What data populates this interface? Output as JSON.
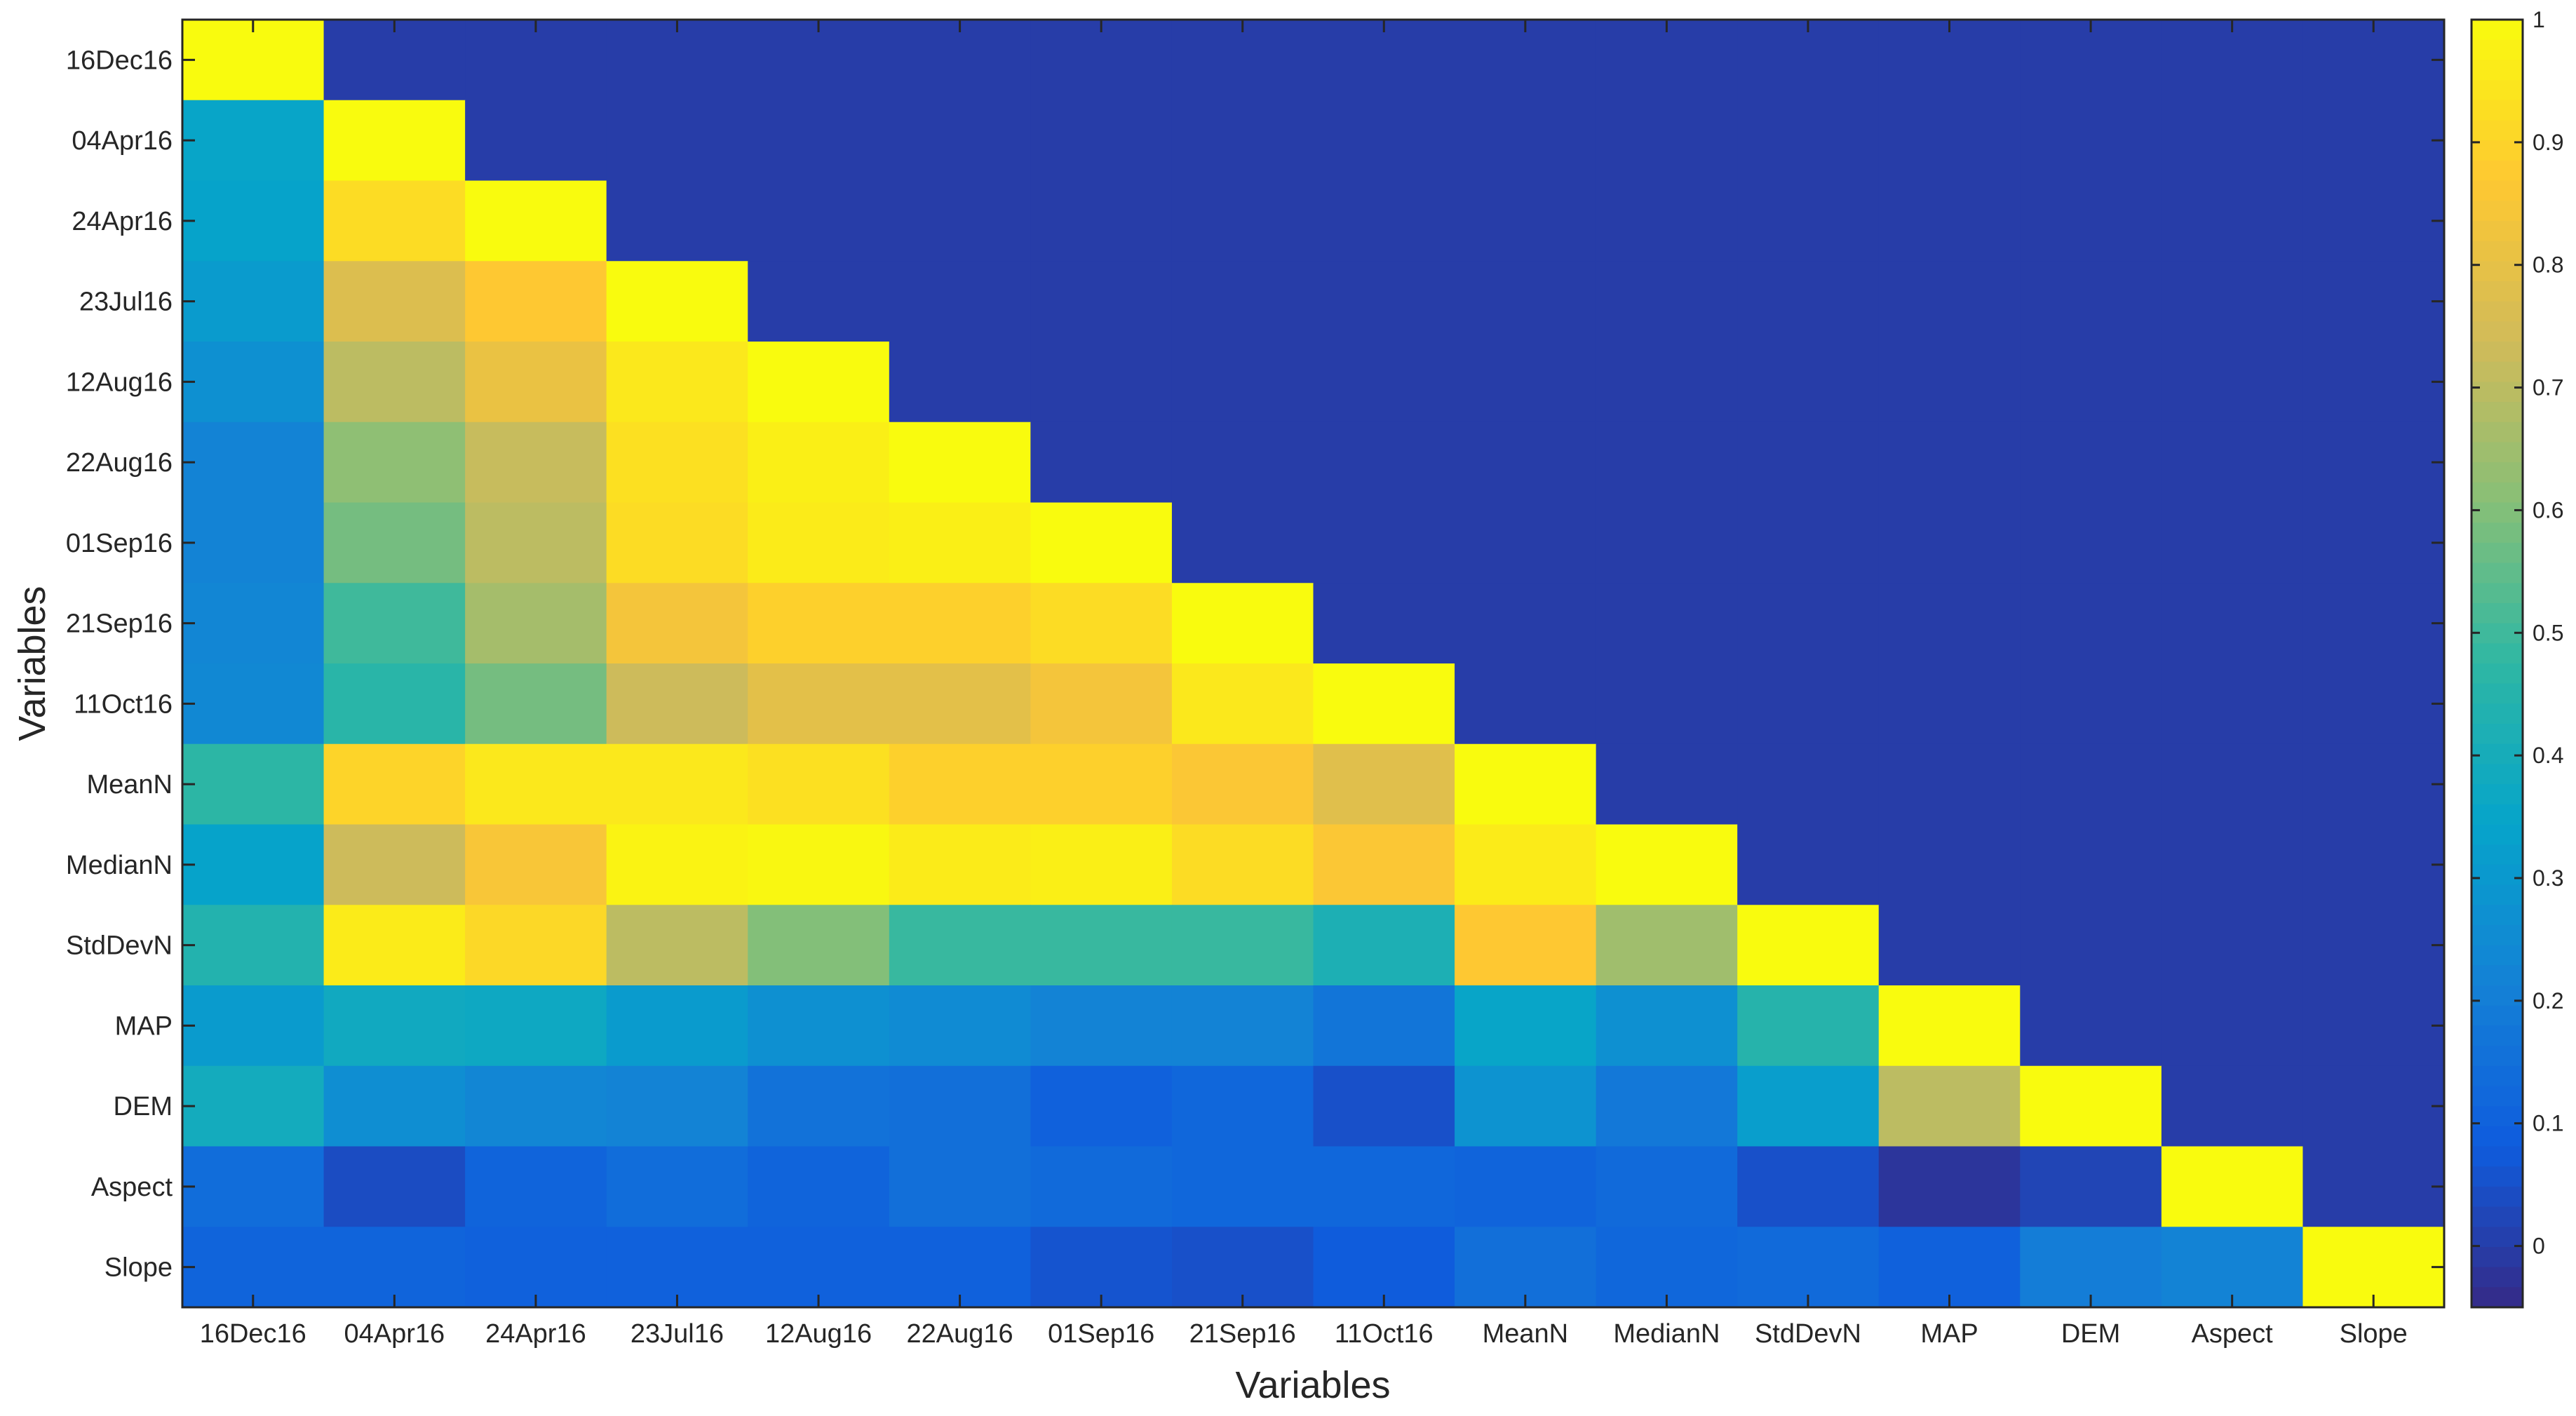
{
  "chart_data": {
    "type": "heatmap",
    "title": "",
    "xlabel": "Variables",
    "ylabel": "Variables",
    "categories": [
      "16Dec16",
      "04Apr16",
      "24Apr16",
      "23Jul16",
      "12Aug16",
      "22Aug16",
      "01Sep16",
      "21Sep16",
      "11Oct16",
      "MeanN",
      "MedianN",
      "StdDevN",
      "MAP",
      "DEM",
      "Aspect",
      "Slope"
    ],
    "x_categories": [
      "16Dec16",
      "04Apr16",
      "24Apr16",
      "23Jul16",
      "12Aug16",
      "22Aug16",
      "01Sep16",
      "21Sep16",
      "11Oct16",
      "MeanN",
      "MedianN",
      "StdDevN",
      "MAP",
      "DEM",
      "Aspect",
      "Slope"
    ],
    "y_categories": [
      "16Dec16",
      "04Apr16",
      "24Apr16",
      "23Jul16",
      "12Aug16",
      "22Aug16",
      "01Sep16",
      "21Sep16",
      "11Oct16",
      "MeanN",
      "MedianN",
      "StdDevN",
      "MAP",
      "DEM",
      "Aspect",
      "Slope"
    ],
    "values": [
      [
        1.0,
        0.0,
        0.0,
        0.0,
        0.0,
        0.0,
        0.0,
        0.0,
        0.0,
        0.0,
        0.0,
        0.0,
        0.0,
        0.0,
        0.0,
        0.0
      ],
      [
        0.35,
        1.0,
        0.0,
        0.0,
        0.0,
        0.0,
        0.0,
        0.0,
        0.0,
        0.0,
        0.0,
        0.0,
        0.0,
        0.0,
        0.0,
        0.0
      ],
      [
        0.34,
        0.92,
        1.0,
        0.0,
        0.0,
        0.0,
        0.0,
        0.0,
        0.0,
        0.0,
        0.0,
        0.0,
        0.0,
        0.0,
        0.0,
        0.0
      ],
      [
        0.31,
        0.77,
        0.87,
        1.0,
        0.0,
        0.0,
        0.0,
        0.0,
        0.0,
        0.0,
        0.0,
        0.0,
        0.0,
        0.0,
        0.0,
        0.0
      ],
      [
        0.27,
        0.7,
        0.81,
        0.95,
        1.0,
        0.0,
        0.0,
        0.0,
        0.0,
        0.0,
        0.0,
        0.0,
        0.0,
        0.0,
        0.0,
        0.0
      ],
      [
        0.22,
        0.62,
        0.72,
        0.93,
        0.97,
        1.0,
        0.0,
        0.0,
        0.0,
        0.0,
        0.0,
        0.0,
        0.0,
        0.0,
        0.0,
        0.0
      ],
      [
        0.22,
        0.58,
        0.7,
        0.92,
        0.96,
        0.97,
        1.0,
        0.0,
        0.0,
        0.0,
        0.0,
        0.0,
        0.0,
        0.0,
        0.0,
        0.0
      ],
      [
        0.23,
        0.5,
        0.66,
        0.84,
        0.89,
        0.89,
        0.92,
        1.0,
        0.0,
        0.0,
        0.0,
        0.0,
        0.0,
        0.0,
        0.0,
        0.0
      ],
      [
        0.24,
        0.46,
        0.58,
        0.73,
        0.79,
        0.79,
        0.84,
        0.95,
        1.0,
        0.0,
        0.0,
        0.0,
        0.0,
        0.0,
        0.0,
        0.0
      ],
      [
        0.47,
        0.9,
        0.95,
        0.95,
        0.93,
        0.89,
        0.89,
        0.86,
        0.78,
        1.0,
        0.0,
        0.0,
        0.0,
        0.0,
        0.0,
        0.0
      ],
      [
        0.34,
        0.73,
        0.85,
        0.98,
        0.99,
        0.96,
        0.97,
        0.92,
        0.86,
        0.96,
        1.0,
        0.0,
        0.0,
        0.0,
        0.0,
        0.0
      ],
      [
        0.44,
        0.96,
        0.91,
        0.7,
        0.6,
        0.49,
        0.49,
        0.49,
        0.42,
        0.87,
        0.65,
        1.0,
        0.0,
        0.0,
        0.0,
        0.0
      ],
      [
        0.31,
        0.38,
        0.37,
        0.31,
        0.27,
        0.25,
        0.22,
        0.22,
        0.17,
        0.35,
        0.27,
        0.45,
        1.0,
        0.0,
        0.0,
        0.0
      ],
      [
        0.39,
        0.26,
        0.23,
        0.22,
        0.16,
        0.15,
        0.1,
        0.12,
        0.05,
        0.28,
        0.18,
        0.32,
        0.7,
        1.0,
        0.0,
        0.0
      ],
      [
        0.14,
        0.04,
        0.11,
        0.14,
        0.11,
        0.15,
        0.13,
        0.12,
        0.12,
        0.11,
        0.13,
        0.05,
        -0.02,
        0.02,
        1.0,
        0.0
      ],
      [
        0.11,
        0.11,
        0.1,
        0.1,
        0.1,
        0.1,
        0.06,
        0.05,
        0.08,
        0.15,
        0.12,
        0.13,
        0.1,
        0.2,
        0.22,
        1.0
      ]
    ],
    "colorbar": {
      "range": [
        -0.05,
        1
      ],
      "ticks": [
        0,
        0.1,
        0.2,
        0.3,
        0.4,
        0.5,
        0.6,
        0.7,
        0.8,
        0.9,
        1
      ],
      "tick_labels": [
        "0",
        "0.1",
        "0.2",
        "0.3",
        "0.4",
        "0.5",
        "0.6",
        "0.7",
        "0.8",
        "0.9",
        "1"
      ],
      "placement": "right",
      "colormap": "parula"
    },
    "grid": false
  },
  "colors": {
    "colormap_stops": [
      "#352a87",
      "#0f5cdd",
      "#1481d6",
      "#06a4ca",
      "#2eb7a4",
      "#87bf77",
      "#d1bb59",
      "#fec832",
      "#f9fb0e"
    ],
    "tick_text": "#262626",
    "axis_line": "#262626"
  }
}
